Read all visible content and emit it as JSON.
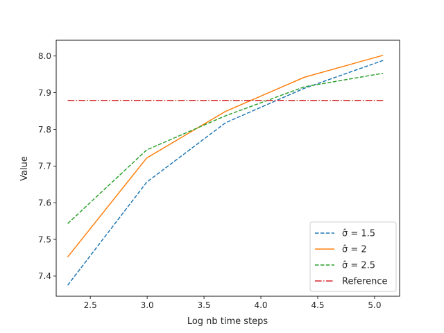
{
  "chart_data": {
    "type": "line",
    "title": "",
    "xlabel": "Log nb time  steps",
    "ylabel": "Value",
    "xlim": [
      2.2,
      5.22
    ],
    "ylim": [
      7.345,
      8.043
    ],
    "xticks": [
      2.5,
      3.0,
      3.5,
      4.0,
      4.5,
      5.0
    ],
    "xtick_labels": [
      "2.5",
      "3.0",
      "3.5",
      "4.0",
      "4.5",
      "5.0"
    ],
    "yticks": [
      7.4,
      7.5,
      7.6,
      7.7,
      7.8,
      7.9,
      8.0
    ],
    "ytick_labels": [
      "7.4",
      "7.5",
      "7.6",
      "7.7",
      "7.8",
      "7.9",
      "8.0"
    ],
    "grid": false,
    "legend_position": "lower-right",
    "series": [
      {
        "name": "σ̂ =  1.5",
        "color": "#1f77b4",
        "style": "dashed",
        "x": [
          2.301,
          2.996,
          3.689,
          4.382,
          5.075
        ],
        "y": [
          7.375,
          7.656,
          7.818,
          7.912,
          7.988
        ]
      },
      {
        "name": "σ̂ =  2",
        "color": "#ff7f0e",
        "style": "solid",
        "x": [
          2.301,
          2.996,
          3.689,
          4.382,
          5.075
        ],
        "y": [
          7.452,
          7.722,
          7.849,
          7.942,
          8.002
        ]
      },
      {
        "name": "σ̂ =  2.5",
        "color": "#2ca02c",
        "style": "dashed",
        "x": [
          2.301,
          2.996,
          3.689,
          4.382,
          5.075
        ],
        "y": [
          7.543,
          7.744,
          7.837,
          7.916,
          7.953
        ]
      },
      {
        "name": "Reference",
        "color": "#d62728",
        "style": "dashdot",
        "x": [
          2.301,
          5.075
        ],
        "y": [
          7.879,
          7.879
        ]
      }
    ]
  }
}
